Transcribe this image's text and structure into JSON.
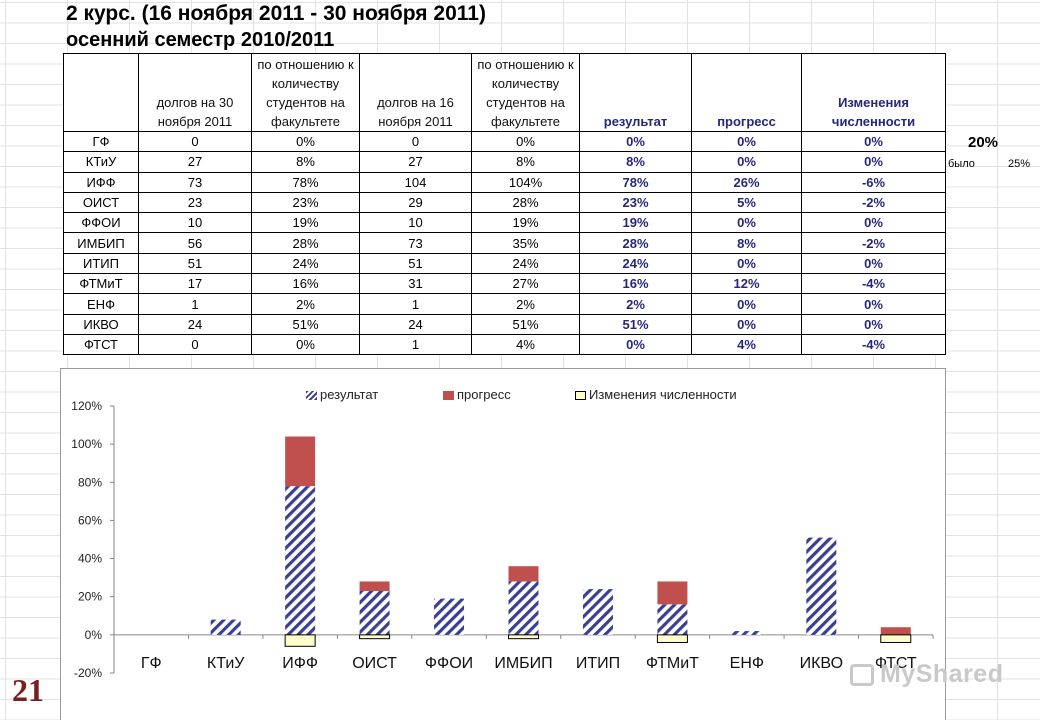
{
  "header": {
    "title_line1": "2 курс.  (16 ноября 2011  -  30 ноября  2011)",
    "title_line2": "осенний семестр 2010/2011"
  },
  "table": {
    "headers": [
      "",
      "долгов на 30 ноября  2011",
      "по отношению к количеству студентов на факультете",
      "долгов на 16 ноября 2011",
      "по отношению к количеству студентов на факультете",
      "результат",
      "прогресс",
      "Изменения численности"
    ],
    "rows": [
      [
        "ГФ",
        "0",
        "0%",
        "0",
        "0%",
        "0%",
        "0%",
        "0%"
      ],
      [
        "КТиУ",
        "27",
        "8%",
        "27",
        "8%",
        "8%",
        "0%",
        "0%"
      ],
      [
        "ИФФ",
        "73",
        "78%",
        "104",
        "104%",
        "78%",
        "26%",
        "-6%"
      ],
      [
        "ОИСТ",
        "23",
        "23%",
        "29",
        "28%",
        "23%",
        "5%",
        "-2%"
      ],
      [
        "ФФОИ",
        "10",
        "19%",
        "10",
        "19%",
        "19%",
        "0%",
        "0%"
      ],
      [
        "ИМБИП",
        "56",
        "28%",
        "73",
        "35%",
        "28%",
        "8%",
        "-2%"
      ],
      [
        "ИТИП",
        "51",
        "24%",
        "51",
        "24%",
        "24%",
        "0%",
        "0%"
      ],
      [
        "ФТМиТ",
        "17",
        "16%",
        "31",
        "27%",
        "16%",
        "12%",
        "-4%"
      ],
      [
        "ЕНФ",
        "1",
        "2%",
        "1",
        "2%",
        "2%",
        "0%",
        "0%"
      ],
      [
        "ИКВО",
        "24",
        "51%",
        "24",
        "51%",
        "51%",
        "0%",
        "0%"
      ],
      [
        "ФТСТ",
        "0",
        "0%",
        "1",
        "4%",
        "0%",
        "4%",
        "-4%"
      ]
    ]
  },
  "side": {
    "pct": "20%",
    "label": "было",
    "value": "25%"
  },
  "chart_data": {
    "type": "bar",
    "stacked": true,
    "categories": [
      "ГФ",
      "КТиУ",
      "ИФФ",
      "ОИСТ",
      "ФФОИ",
      "ИМБИП",
      "ИТИП",
      "ФТМиТ",
      "ЕНФ",
      "ИКВО",
      "ФТСТ"
    ],
    "series": [
      {
        "name": "результат",
        "values": [
          0,
          8,
          78,
          23,
          19,
          28,
          24,
          16,
          2,
          51,
          0
        ]
      },
      {
        "name": "прогресс",
        "values": [
          0,
          0,
          26,
          5,
          0,
          8,
          0,
          12,
          0,
          0,
          4
        ]
      },
      {
        "name": "Изменения численности",
        "values": [
          0,
          0,
          -6,
          -2,
          0,
          -2,
          0,
          -4,
          0,
          0,
          -4
        ]
      }
    ],
    "ylim": [
      -20,
      120
    ],
    "yticks": [
      -20,
      0,
      20,
      40,
      60,
      80,
      100,
      120
    ],
    "ytick_labels": [
      "-20%",
      "0%",
      "20%",
      "40%",
      "60%",
      "80%",
      "100%",
      "120%"
    ],
    "legend": "top",
    "colors": {
      "result": "#3b3f8f",
      "progress": "#c0504d",
      "change": "#ffffcc"
    }
  },
  "footer": {
    "slide_number": "21",
    "watermark": "MyShared"
  }
}
